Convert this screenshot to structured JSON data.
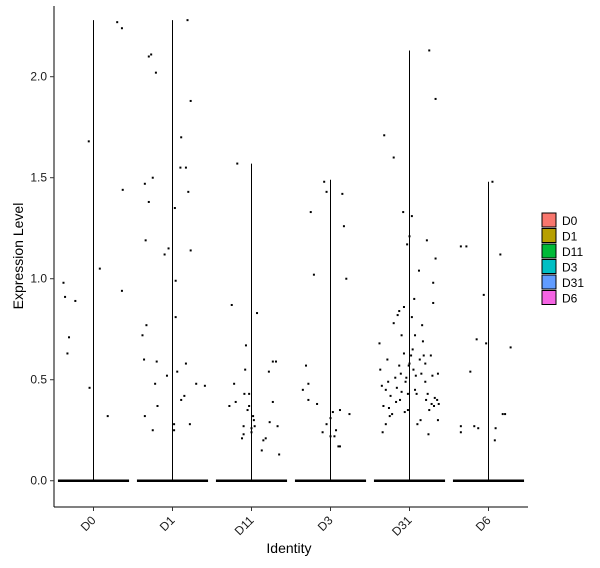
{
  "chart_data": {
    "type": "violin",
    "title": "",
    "xlabel": "Identity",
    "ylabel": "Expression Level",
    "ylim": [
      -0.13,
      2.35
    ],
    "yticks": [
      0.0,
      0.5,
      1.0,
      1.5,
      2.0
    ],
    "ytick_labels": [
      "0.0",
      "0.5",
      "1.0",
      "1.5",
      "2.0"
    ],
    "grid": false,
    "legend_position": "right",
    "legend_title": "",
    "categories": [
      "D0",
      "D1",
      "D11",
      "D3",
      "D31",
      "D6"
    ],
    "colors": [
      "#F8766D",
      "#B79F00",
      "#00BA38",
      "#00BFC4",
      "#619CFF",
      "#F564E3"
    ],
    "series": [
      {
        "name": "D0",
        "max": 2.28,
        "points": [
          [
            -0.38,
            0.98
          ],
          [
            -0.36,
            0.91
          ],
          [
            -0.33,
            0.63
          ],
          [
            -0.31,
            0.71
          ],
          [
            -0.23,
            0.89
          ],
          [
            -0.06,
            1.68
          ],
          [
            -0.05,
            0.46
          ],
          [
            0.08,
            1.05
          ],
          [
            0.18,
            0.32
          ],
          [
            0.3,
            2.27
          ],
          [
            0.36,
            2.24
          ],
          [
            0.36,
            0.94
          ],
          [
            0.37,
            1.44
          ]
        ]
      },
      {
        "name": "D1",
        "max": 2.28,
        "points": [
          [
            -0.38,
            0.72
          ],
          [
            -0.36,
            0.6
          ],
          [
            -0.34,
            1.19
          ],
          [
            -0.35,
            0.32
          ],
          [
            -0.35,
            1.47
          ],
          [
            -0.33,
            0.77
          ],
          [
            -0.3,
            2.1
          ],
          [
            -0.3,
            1.38
          ],
          [
            -0.27,
            2.11
          ],
          [
            -0.25,
            1.5
          ],
          [
            -0.25,
            0.25
          ],
          [
            -0.22,
            0.48
          ],
          [
            -0.21,
            2.02
          ],
          [
            -0.2,
            0.59
          ],
          [
            -0.19,
            0.37
          ],
          [
            -0.1,
            1.12
          ],
          [
            -0.07,
            0.52
          ],
          [
            -0.05,
            1.15
          ],
          [
            0.02,
            0.25
          ],
          [
            0.02,
            0.28
          ],
          [
            0.03,
            1.35
          ],
          [
            0.04,
            0.81
          ],
          [
            0.04,
            0.99
          ],
          [
            0.06,
            0.54
          ],
          [
            0.1,
            1.55
          ],
          [
            0.11,
            1.7
          ],
          [
            0.11,
            0.4
          ],
          [
            0.15,
            0.42
          ],
          [
            0.17,
            0.58
          ],
          [
            0.17,
            1.55
          ],
          [
            0.19,
            2.28
          ],
          [
            0.2,
            1.43
          ],
          [
            0.22,
            0.28
          ],
          [
            0.23,
            1.88
          ],
          [
            0.23,
            1.14
          ],
          [
            0.3,
            0.48
          ],
          [
            0.41,
            0.47
          ]
        ]
      },
      {
        "name": "D11",
        "max": 1.57,
        "points": [
          [
            -0.28,
            0.37
          ],
          [
            -0.25,
            0.87
          ],
          [
            -0.22,
            0.48
          ],
          [
            -0.2,
            0.39
          ],
          [
            -0.18,
            1.57
          ],
          [
            -0.12,
            0.21
          ],
          [
            -0.09,
            0.43
          ],
          [
            -0.1,
            0.27
          ],
          [
            -0.1,
            0.23
          ],
          [
            -0.08,
            0.55
          ],
          [
            -0.07,
            0.67
          ],
          [
            -0.05,
            0.35
          ],
          [
            -0.03,
            0.37
          ],
          [
            -0.03,
            0.43
          ],
          [
            0.0,
            0.24
          ],
          [
            0.0,
            0.26
          ],
          [
            0.02,
            0.32
          ],
          [
            0.03,
            0.3
          ],
          [
            0.04,
            0.27
          ],
          [
            0.07,
            0.83
          ],
          [
            0.13,
            0.15
          ],
          [
            0.15,
            0.2
          ],
          [
            0.18,
            0.21
          ],
          [
            0.22,
            0.54
          ],
          [
            0.23,
            0.29
          ],
          [
            0.27,
            0.39
          ],
          [
            0.27,
            0.59
          ],
          [
            0.31,
            0.59
          ],
          [
            0.33,
            0.27
          ],
          [
            0.35,
            0.13
          ]
        ]
      },
      {
        "name": "D3",
        "max": 1.49,
        "points": [
          [
            -0.35,
            0.45
          ],
          [
            -0.31,
            0.57
          ],
          [
            -0.28,
            0.4
          ],
          [
            -0.28,
            0.48
          ],
          [
            -0.25,
            1.33
          ],
          [
            -0.21,
            1.02
          ],
          [
            -0.17,
            0.38
          ],
          [
            -0.1,
            0.24
          ],
          [
            -0.08,
            1.48
          ],
          [
            -0.05,
            0.28
          ],
          [
            -0.05,
            1.43
          ],
          [
            0.0,
            0.31
          ],
          [
            0.0,
            0.22
          ],
          [
            0.03,
            0.34
          ],
          [
            0.05,
            0.22
          ],
          [
            0.07,
            0.25
          ],
          [
            0.1,
            0.17
          ],
          [
            0.12,
            0.17
          ],
          [
            0.12,
            0.35
          ],
          [
            0.15,
            1.42
          ],
          [
            0.17,
            1.26
          ],
          [
            0.2,
            1.0
          ],
          [
            0.24,
            0.33
          ]
        ]
      },
      {
        "name": "D31",
        "max": 2.13,
        "points": [
          [
            -0.38,
            0.68
          ],
          [
            -0.37,
            0.55
          ],
          [
            -0.35,
            0.47
          ],
          [
            -0.34,
            0.24
          ],
          [
            -0.33,
            0.37
          ],
          [
            -0.32,
            1.71
          ],
          [
            -0.3,
            0.45
          ],
          [
            -0.3,
            0.28
          ],
          [
            -0.28,
            0.6
          ],
          [
            -0.27,
            0.49
          ],
          [
            -0.26,
            0.36
          ],
          [
            -0.25,
            0.32
          ],
          [
            -0.24,
            0.42
          ],
          [
            -0.22,
            0.33
          ],
          [
            -0.2,
            1.6
          ],
          [
            -0.2,
            0.78
          ],
          [
            -0.18,
            0.51
          ],
          [
            -0.17,
            0.39
          ],
          [
            -0.16,
            0.46
          ],
          [
            -0.15,
            0.82
          ],
          [
            -0.13,
            0.84
          ],
          [
            -0.13,
            0.57
          ],
          [
            -0.12,
            0.4
          ],
          [
            -0.11,
            0.53
          ],
          [
            -0.1,
            0.44
          ],
          [
            -0.1,
            0.72
          ],
          [
            -0.08,
            1.33
          ],
          [
            -0.07,
            0.86
          ],
          [
            -0.07,
            0.63
          ],
          [
            -0.06,
            0.34
          ],
          [
            -0.05,
            0.49
          ],
          [
            -0.04,
            0.51
          ],
          [
            -0.03,
            1.17
          ],
          [
            -0.02,
            0.35
          ],
          [
            -0.02,
            0.43
          ],
          [
            -0.01,
            0.57
          ],
          [
            0.0,
            1.21
          ],
          [
            0.0,
            0.58
          ],
          [
            0.02,
            0.62
          ],
          [
            0.03,
            0.81
          ],
          [
            0.03,
            1.31
          ],
          [
            0.04,
            0.65
          ],
          [
            0.05,
            0.55
          ],
          [
            0.06,
            0.9
          ],
          [
            0.07,
            0.45
          ],
          [
            0.07,
            0.72
          ],
          [
            0.08,
            0.52
          ],
          [
            0.09,
            0.43
          ],
          [
            0.1,
            0.28
          ],
          [
            0.12,
            1.04
          ],
          [
            0.13,
            0.6
          ],
          [
            0.14,
            0.3
          ],
          [
            0.15,
            0.53
          ],
          [
            0.16,
            0.77
          ],
          [
            0.17,
            0.69
          ],
          [
            0.18,
            0.62
          ],
          [
            0.2,
            0.49
          ],
          [
            0.2,
            0.58
          ],
          [
            0.21,
            0.4
          ],
          [
            0.22,
            1.19
          ],
          [
            0.23,
            0.43
          ],
          [
            0.24,
            0.23
          ],
          [
            0.25,
            2.13
          ],
          [
            0.25,
            0.35
          ],
          [
            0.27,
            0.62
          ],
          [
            0.28,
            0.38
          ],
          [
            0.29,
            0.52
          ],
          [
            0.3,
            0.98
          ],
          [
            0.3,
            0.88
          ],
          [
            0.31,
            0.37
          ],
          [
            0.32,
            0.41
          ],
          [
            0.33,
            1.89
          ],
          [
            0.33,
            1.1
          ],
          [
            0.35,
            0.4
          ],
          [
            0.36,
            0.3
          ],
          [
            0.36,
            0.53
          ],
          [
            0.37,
            0.38
          ]
        ]
      },
      {
        "name": "D6",
        "max": 1.48,
        "points": [
          [
            -0.35,
            0.27
          ],
          [
            -0.35,
            0.24
          ],
          [
            -0.35,
            1.16
          ],
          [
            -0.28,
            1.16
          ],
          [
            -0.23,
            0.54
          ],
          [
            -0.18,
            0.27
          ],
          [
            -0.15,
            0.7
          ],
          [
            -0.13,
            0.26
          ],
          [
            -0.06,
            0.92
          ],
          [
            -0.03,
            0.68
          ],
          [
            0.05,
            1.48
          ],
          [
            0.08,
            0.2
          ],
          [
            0.09,
            0.26
          ],
          [
            0.15,
            1.12
          ],
          [
            0.18,
            0.33
          ],
          [
            0.21,
            0.33
          ],
          [
            0.28,
            0.66
          ]
        ]
      }
    ]
  }
}
